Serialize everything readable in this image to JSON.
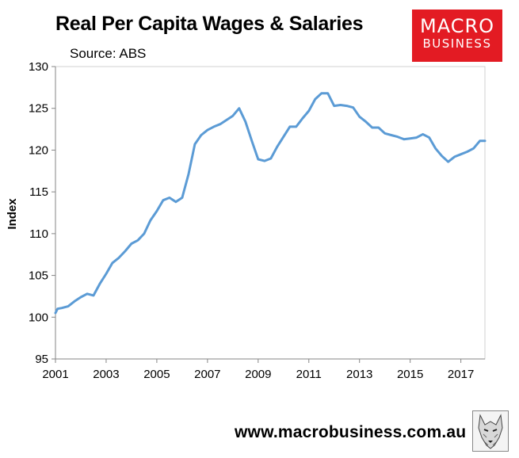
{
  "header": {
    "title": "Real Per Capita Wages & Salaries",
    "source": "Source: ABS"
  },
  "logo": {
    "line1": "MACRO",
    "line2": "BUSINESS",
    "color": "#e31b23"
  },
  "footer": {
    "url": "www.macrobusiness.com.au",
    "emblem_icon": "wolf-emblem-icon"
  },
  "chart_data": {
    "type": "line",
    "title": "Real Per Capita Wages & Salaries",
    "xlabel": "",
    "ylabel": "Index",
    "xlim": [
      2001,
      2017.95
    ],
    "ylim": [
      95,
      130
    ],
    "yticks": [
      95,
      100,
      105,
      110,
      115,
      120,
      125,
      130
    ],
    "xticks": [
      2001,
      2003,
      2005,
      2007,
      2009,
      2011,
      2013,
      2015,
      2017
    ],
    "grid": false,
    "line_color": "#5b9bd5",
    "series": [
      {
        "name": "",
        "x": [
          2001.0,
          2001.08,
          2001.25,
          2001.5,
          2001.75,
          2002.0,
          2002.25,
          2002.5,
          2002.75,
          2003.0,
          2003.25,
          2003.5,
          2003.75,
          2004.0,
          2004.25,
          2004.5,
          2004.75,
          2005.0,
          2005.25,
          2005.5,
          2005.75,
          2006.0,
          2006.25,
          2006.5,
          2006.75,
          2007.0,
          2007.25,
          2007.5,
          2007.75,
          2008.0,
          2008.25,
          2008.5,
          2008.75,
          2009.0,
          2009.25,
          2009.5,
          2009.75,
          2010.0,
          2010.25,
          2010.5,
          2010.75,
          2011.0,
          2011.25,
          2011.5,
          2011.75,
          2012.0,
          2012.25,
          2012.5,
          2012.75,
          2013.0,
          2013.25,
          2013.5,
          2013.75,
          2014.0,
          2014.25,
          2014.5,
          2014.75,
          2015.0,
          2015.25,
          2015.5,
          2015.75,
          2016.0,
          2016.25,
          2016.5,
          2016.75,
          2017.0,
          2017.25,
          2017.5,
          2017.75,
          2017.95
        ],
        "values": [
          100.5,
          101.0,
          101.1,
          101.3,
          101.9,
          102.4,
          102.8,
          102.6,
          104.0,
          105.2,
          106.5,
          107.1,
          107.9,
          108.8,
          109.2,
          110.0,
          111.6,
          112.7,
          114.0,
          114.3,
          113.8,
          114.3,
          117.1,
          120.7,
          121.8,
          122.4,
          122.8,
          123.1,
          123.6,
          124.1,
          125.0,
          123.4,
          121.1,
          118.9,
          118.7,
          119.0,
          120.4,
          121.6,
          122.8,
          122.8,
          123.8,
          124.7,
          126.1,
          126.8,
          126.8,
          125.3,
          125.4,
          125.3,
          125.1,
          124.0,
          123.4,
          122.7,
          122.7,
          122.0,
          121.8,
          121.6,
          121.3,
          121.4,
          121.5,
          121.9,
          121.5,
          120.2,
          119.3,
          118.6,
          119.2,
          119.5,
          119.8,
          120.2,
          121.1,
          121.1
        ]
      }
    ]
  }
}
